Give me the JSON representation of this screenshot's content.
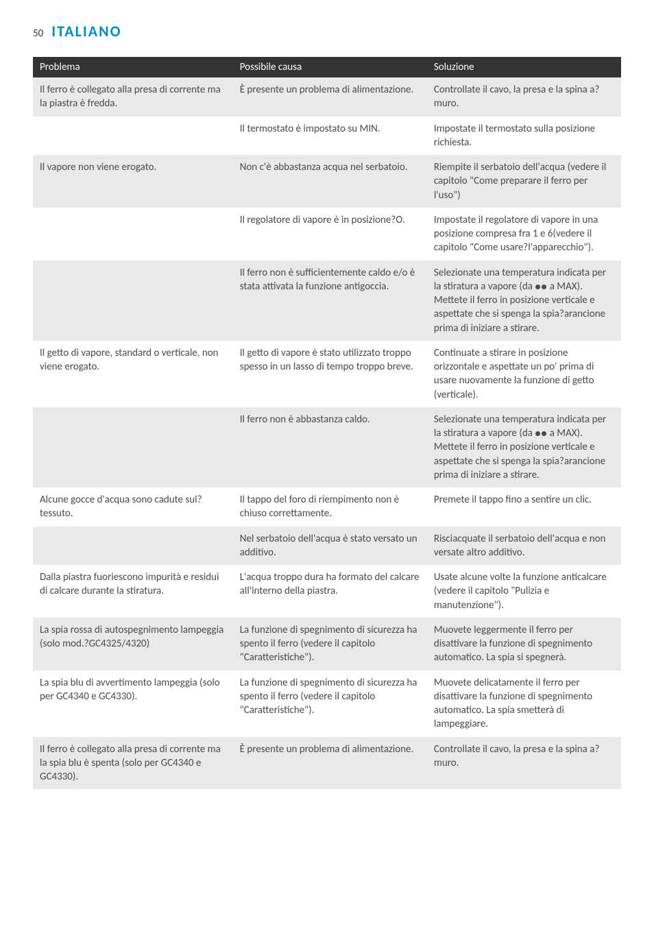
{
  "header": {
    "page_number": "50",
    "language": "ITALIANO",
    "title_color": "#0089c4"
  },
  "table": {
    "header_bg": "#333333",
    "header_fg": "#ffffff",
    "row_alt_bg": "#e9e9e9",
    "row_bg": "#ffffff",
    "columns": [
      "Problema",
      "Possibile causa",
      "Soluzione"
    ],
    "rows": [
      {
        "shade": true,
        "cells": [
          "Il ferro è collegato alla presa di corrente ma la piastra è fredda.",
          "È presente un problema di alimentazione.",
          "Controllate il cavo, la presa e la spina a?muro."
        ]
      },
      {
        "shade": false,
        "cells": [
          "",
          "Il termostato è impostato su MIN.",
          "Impostate il termostato sulla posizione richiesta."
        ]
      },
      {
        "shade": true,
        "cells": [
          "Il vapore non viene erogato.",
          "Non c'è abbastanza acqua nel serbatoio.",
          "Riempite il serbatoio dell'acqua (vedere il capitolo \"Come preparare il ferro per l'uso\")"
        ]
      },
      {
        "shade": false,
        "cells": [
          "",
          "Il regolatore di vapore è in posizione?O.",
          "Impostate il regolatore di vapore in una posizione compresa fra 1 e 6(vedere il capitolo \"Come usare?l'apparecchio\")."
        ]
      },
      {
        "shade": true,
        "cells": [
          "",
          "Il ferro non è sufficientemente caldo e/o è stata attivata la funzione antigoccia.",
          "Selezionate una temperatura indicata per la stiratura a vapore (da ●● a MAX). Mettete il ferro in posizione verticale e aspettate che si spenga la spia?arancione prima di iniziare a stirare."
        ]
      },
      {
        "shade": false,
        "cells": [
          "Il getto di vapore, standard o verticale, non viene erogato.",
          "Il getto di vapore è stato utilizzato troppo spesso in un lasso di tempo troppo breve.",
          "Continuate a stirare in posizione orizzontale e aspettate un po' prima di usare nuovamente la funzione di getto (verticale)."
        ]
      },
      {
        "shade": true,
        "cells": [
          "",
          "Il ferro non è abbastanza caldo.",
          "Selezionate una temperatura indicata per la stiratura a vapore (da ●● a MAX). Mettete il ferro in posizione verticale e aspettate che si spenga la spia?arancione prima di iniziare a stirare."
        ]
      },
      {
        "shade": false,
        "cells": [
          "Alcune gocce d'acqua sono cadute sul?tessuto.",
          "Il tappo del foro di riempimento non è chiuso correttamente.",
          "Premete il tappo fino a sentire un clic."
        ]
      },
      {
        "shade": true,
        "cells": [
          "",
          "Nel serbatoio dell'acqua è stato versato un additivo.",
          "Risciacquate il serbatoio dell'acqua e non versate altro additivo."
        ]
      },
      {
        "shade": false,
        "cells": [
          "Dalla piastra fuoriescono impurità e residui di calcare durante la stiratura.",
          "L'acqua troppo dura ha formato del calcare all'interno della piastra.",
          "Usate alcune volte la funzione anticalcare (vedere il capitolo \"Pulizia e manutenzione\")."
        ]
      },
      {
        "shade": true,
        "cells": [
          "La spia rossa di autospegnimento lampeggia (solo mod.?GC4325/4320)",
          "La funzione di spegnimento di sicurezza ha spento il ferro (vedere il capitolo \"Caratteristiche\").",
          "Muovete leggermente il ferro per disattivare la funzione di spegnimento automatico. La spia si spegnerà."
        ]
      },
      {
        "shade": false,
        "cells": [
          "La spia blu di avvertimento lampeggia (solo per GC4340 e GC4330).",
          "La funzione di spegnimento di sicurezza ha spento il ferro (vedere il capitolo \"Caratteristiche\").",
          "Muovete delicatamente il ferro per disattivare la funzione di spegnimento automatico. La spia smetterà di lampeggiare."
        ]
      },
      {
        "shade": true,
        "cells": [
          "Il ferro è collegato alla presa di corrente ma la spia blu è spenta (solo per GC4340 e GC4330).",
          "È presente un problema di alimentazione.",
          "Controllate il cavo, la presa e la spina a?muro."
        ]
      }
    ]
  }
}
